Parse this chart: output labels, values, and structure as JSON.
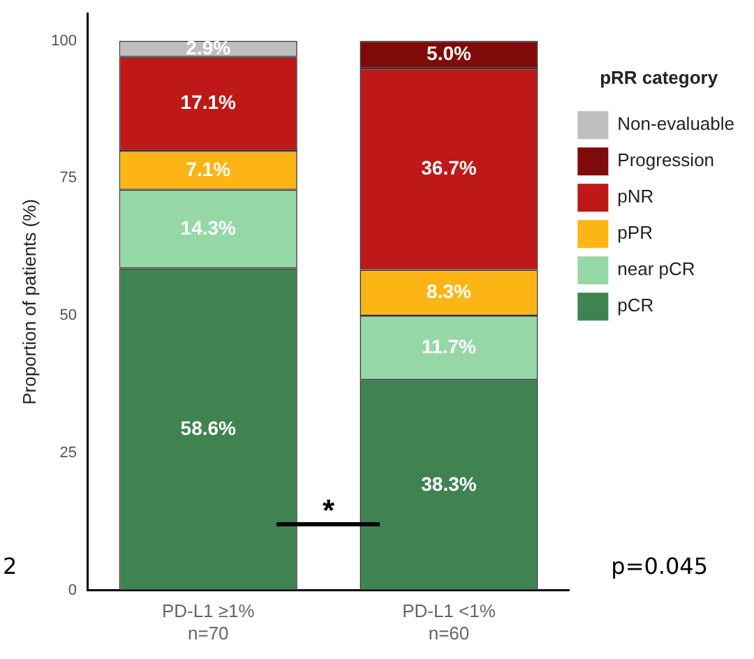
{
  "chart_data": {
    "type": "bar",
    "stacked": true,
    "ylabel": "Proportion of patients (%)",
    "legend_title": "pRR category",
    "legend": "right",
    "grid": false,
    "categories": [
      "PD-L1 ≥1%\nn=70",
      "PD-L1 <1%\nn=60"
    ],
    "ylim": [
      0,
      105
    ],
    "yticks": [
      0,
      25,
      50,
      75,
      100
    ],
    "series": [
      {
        "name": "pCR",
        "color": "#3f8450",
        "values": [
          58.6,
          38.3
        ],
        "value_labels": [
          "58.6%",
          "38.3%"
        ]
      },
      {
        "name": "near pCR",
        "color": "#95d8a6",
        "values": [
          14.3,
          11.7
        ],
        "value_labels": [
          "14.3%",
          "11.7%"
        ]
      },
      {
        "name": "pPR",
        "color": "#fdb515",
        "values": [
          7.1,
          8.3
        ],
        "value_labels": [
          "7.1%",
          "8.3%"
        ]
      },
      {
        "name": "pNR",
        "color": "#be1818",
        "values": [
          17.1,
          36.7
        ],
        "value_labels": [
          "17.1%",
          "36.7%"
        ]
      },
      {
        "name": "Progression",
        "color": "#7f0a0a",
        "values": [
          null,
          5.0
        ],
        "value_labels": [
          null,
          "5.0%"
        ]
      },
      {
        "name": "Non-evaluable",
        "color": "#bebebe",
        "values": [
          2.9,
          null
        ],
        "value_labels": [
          "2.9%",
          null
        ]
      }
    ],
    "annotations": [
      "*",
      "p=0.045",
      "2"
    ]
  }
}
